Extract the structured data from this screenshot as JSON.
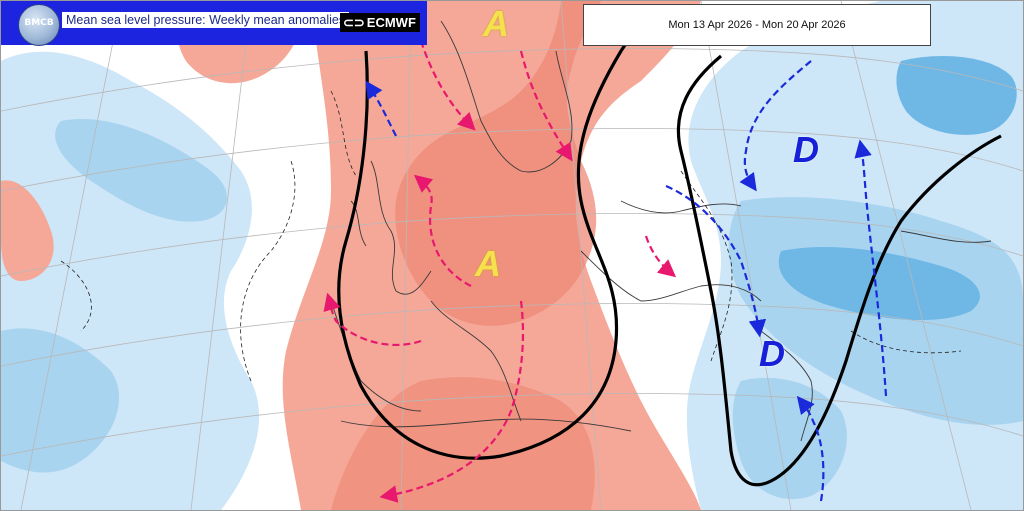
{
  "header": {
    "logo_text": "BMCB",
    "title": "Mean sea level pressure: Weekly mean anomalies",
    "brand": "ECMWF",
    "brand_icon": "ecmwf-logo-icon"
  },
  "date_range": "Mon 13 Apr 2026 - Mon 20 Apr 2026",
  "labels": {
    "high_north": "A",
    "high_central": "A",
    "low_northeast": "D",
    "low_southeast": "D"
  },
  "colors": {
    "positive_anomaly": "#f5a898",
    "positive_anomaly_strong": "#ee8a78",
    "negative_anomaly": "#cde6f8",
    "negative_anomaly_mid": "#a8d4f0",
    "negative_anomaly_strong": "#6fb8e6",
    "high_flow_arrow": "#e8186e",
    "low_flow_arrow": "#1a2adb",
    "trough_ridge_line": "#000000"
  }
}
